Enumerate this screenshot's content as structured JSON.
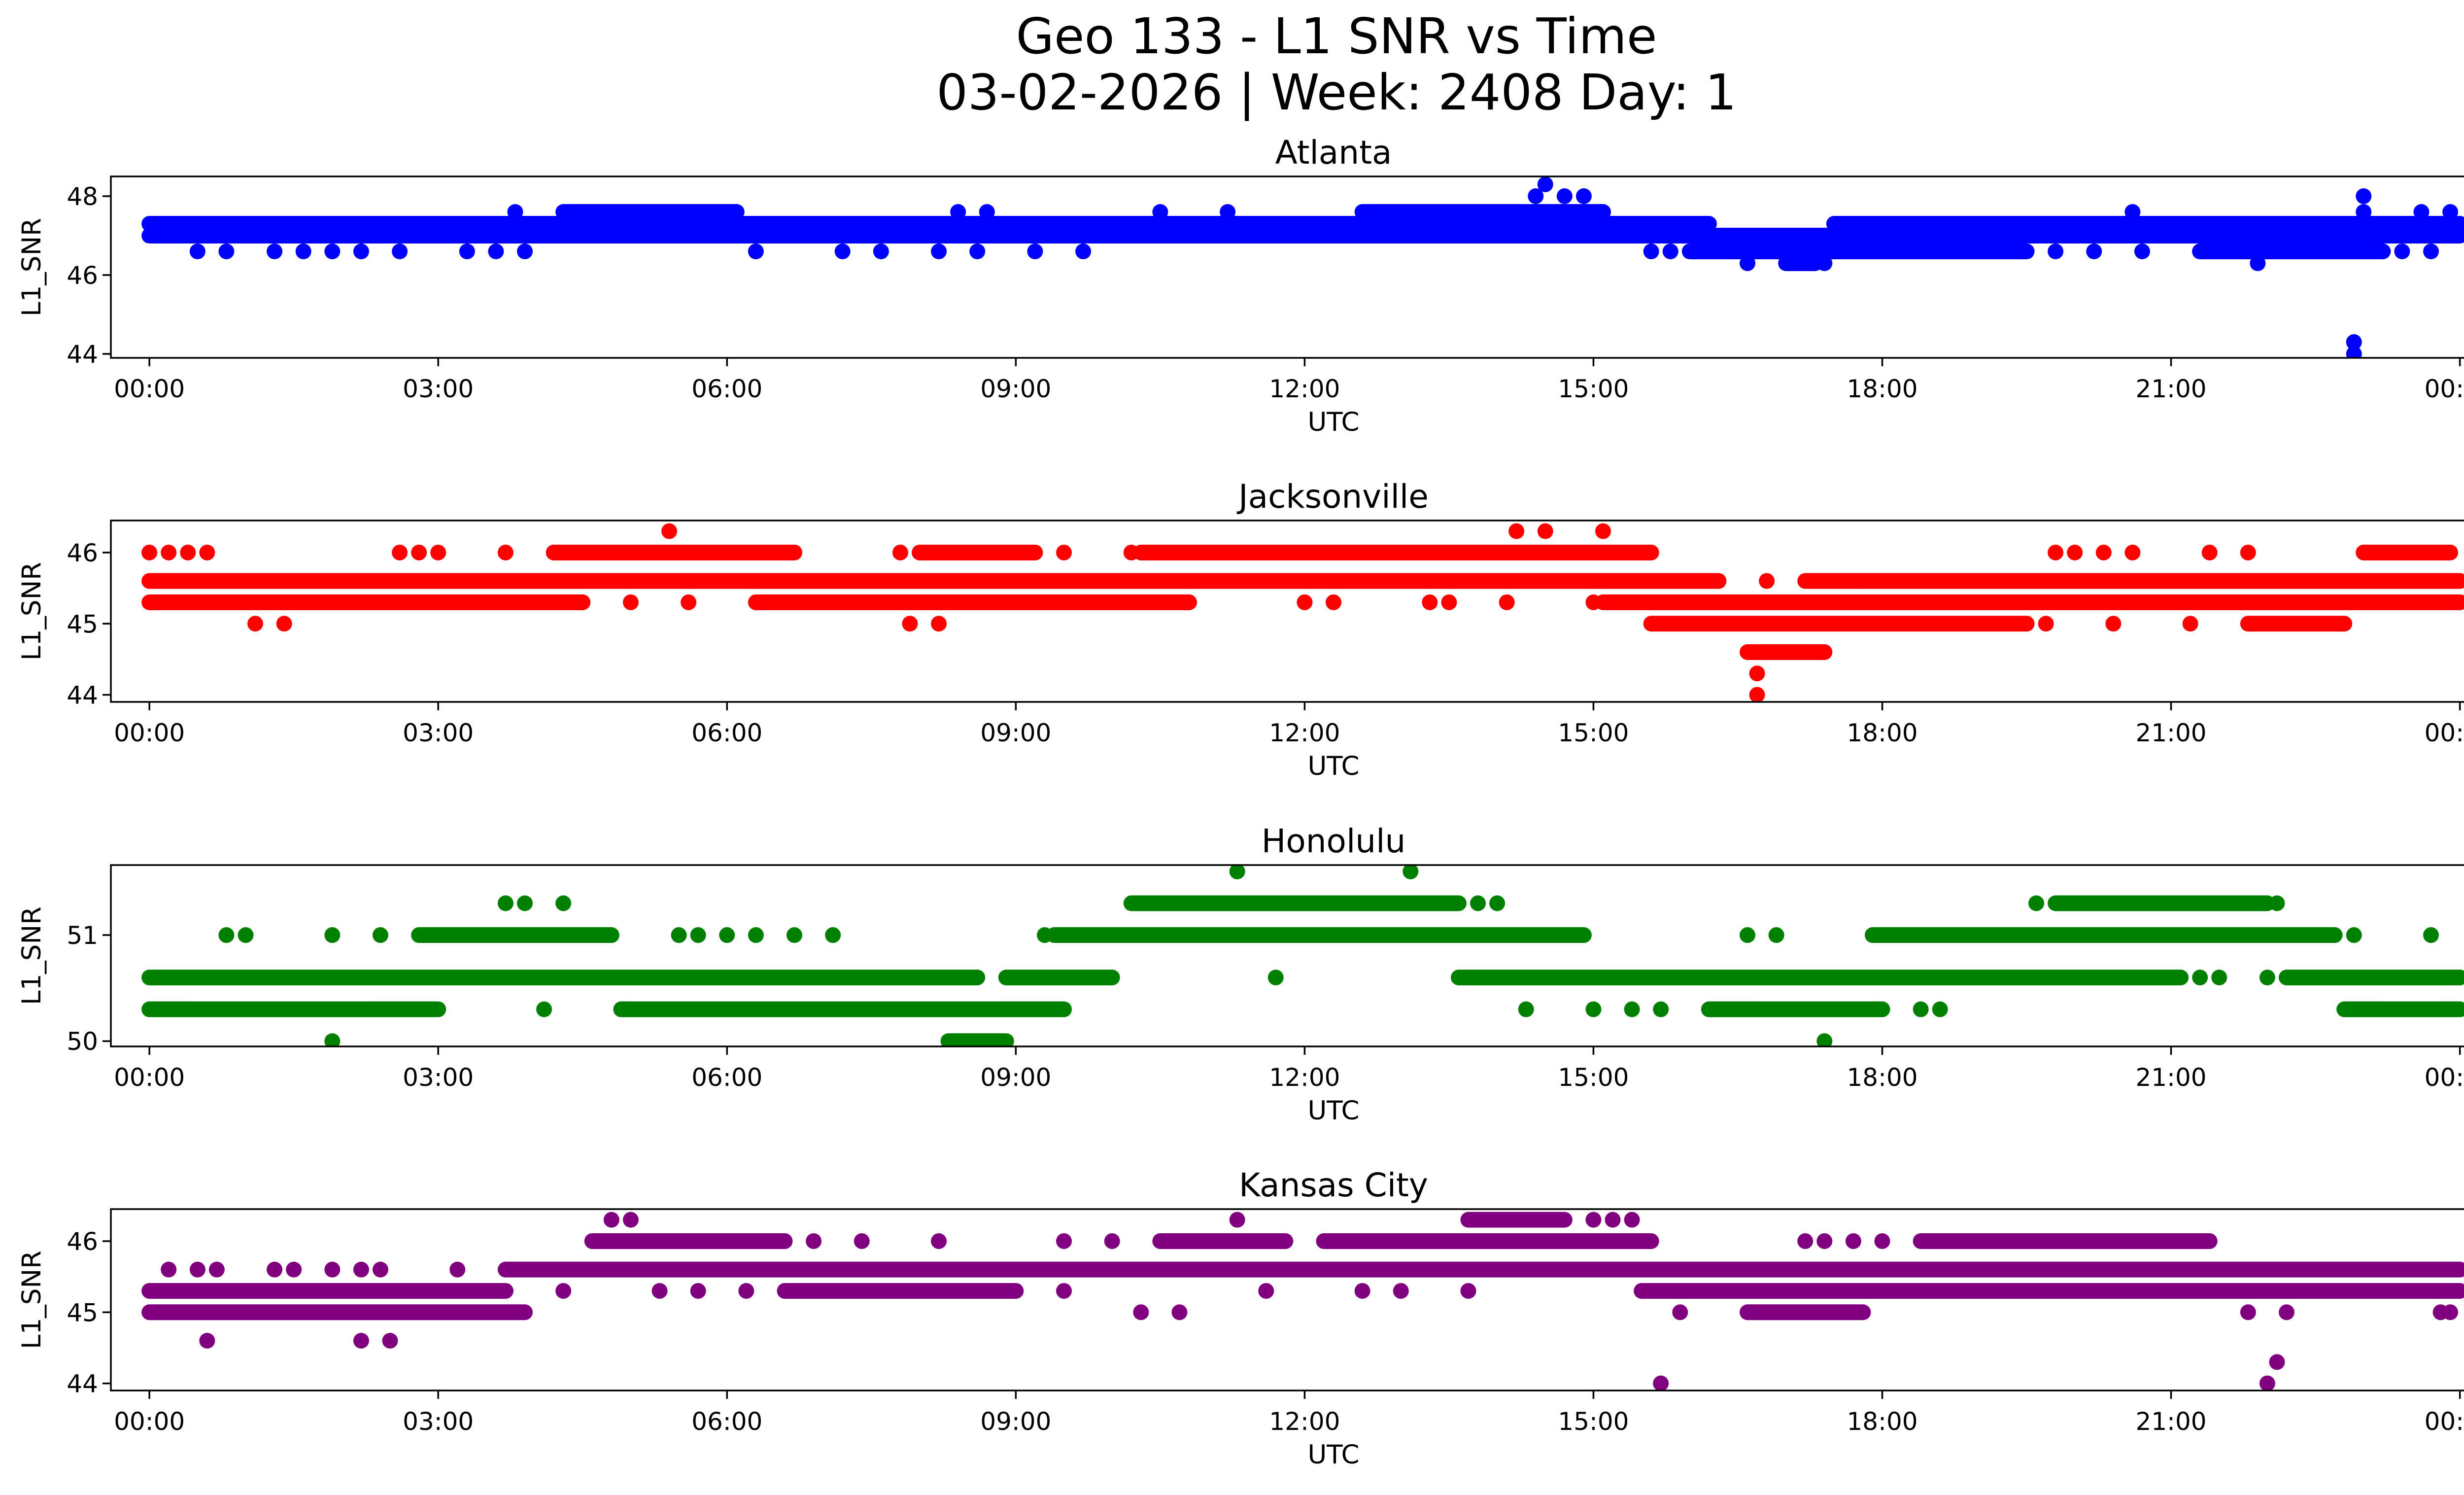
{
  "figure": {
    "title_line1": "Geo 133 - L1 SNR vs Time",
    "title_line2": "03-02-2026 | Week: 2408 Day: 1"
  },
  "chart_data": [
    {
      "type": "scatter",
      "title": "Atlanta",
      "xlabel": "UTC",
      "ylabel": "L1_SNR",
      "color": "#0000ff",
      "xlim": [
        -0.4,
        25.0
      ],
      "ylim": [
        43.9,
        48.5
      ],
      "xticks": [
        0,
        3,
        6,
        9,
        12,
        15,
        18,
        21,
        24
      ],
      "xticklabels": [
        "00:00",
        "03:00",
        "06:00",
        "09:00",
        "12:00",
        "15:00",
        "18:00",
        "21:00",
        "00:00"
      ],
      "yticks": [
        44,
        46,
        48
      ],
      "yticklabels": [
        "44",
        "46",
        "48"
      ],
      "bands": [
        {
          "y": 47.3,
          "x0": 0.0,
          "x1": 4.3
        },
        {
          "y": 47.3,
          "x0": 4.3,
          "x1": 11.8
        },
        {
          "y": 47.3,
          "x0": 11.8,
          "x1": 16.2
        },
        {
          "y": 47.3,
          "x0": 17.5,
          "x1": 24.0
        },
        {
          "y": 47.0,
          "x0": 0.0,
          "x1": 4.3
        },
        {
          "y": 47.0,
          "x0": 4.3,
          "x1": 12.6
        },
        {
          "y": 47.0,
          "x0": 12.6,
          "x1": 18.5
        },
        {
          "y": 47.0,
          "x0": 18.5,
          "x1": 24.0
        },
        {
          "y": 46.6,
          "x0": 16.0,
          "x1": 19.5
        },
        {
          "y": 46.6,
          "x0": 21.3,
          "x1": 23.2
        },
        {
          "y": 47.6,
          "x0": 4.3,
          "x1": 6.1
        },
        {
          "y": 47.6,
          "x0": 12.6,
          "x1": 15.1
        },
        {
          "y": 46.3,
          "x0": 17.0,
          "x1": 17.3
        }
      ],
      "points": [
        [
          0.5,
          46.6
        ],
        [
          0.8,
          46.6
        ],
        [
          1.3,
          46.6
        ],
        [
          1.6,
          46.6
        ],
        [
          1.9,
          46.6
        ],
        [
          2.2,
          46.6
        ],
        [
          2.6,
          46.6
        ],
        [
          3.3,
          46.6
        ],
        [
          3.6,
          46.6
        ],
        [
          3.9,
          46.6
        ],
        [
          4.8,
          47.0
        ],
        [
          5.3,
          47.0
        ],
        [
          5.8,
          47.0
        ],
        [
          6.3,
          46.6
        ],
        [
          7.2,
          46.6
        ],
        [
          7.6,
          46.6
        ],
        [
          8.2,
          46.6
        ],
        [
          8.6,
          46.6
        ],
        [
          9.2,
          46.6
        ],
        [
          9.7,
          46.6
        ],
        [
          3.8,
          47.6
        ],
        [
          8.4,
          47.6
        ],
        [
          8.7,
          47.6
        ],
        [
          10.5,
          47.6
        ],
        [
          11.2,
          47.6
        ],
        [
          14.4,
          48.0
        ],
        [
          14.5,
          48.3
        ],
        [
          14.7,
          48.0
        ],
        [
          14.9,
          48.0
        ],
        [
          15.6,
          46.6
        ],
        [
          15.8,
          46.6
        ],
        [
          16.6,
          46.3
        ],
        [
          17.2,
          46.3
        ],
        [
          17.4,
          46.3
        ],
        [
          17.8,
          47.3
        ],
        [
          18.1,
          46.6
        ],
        [
          18.6,
          46.6
        ],
        [
          19.0,
          46.6
        ],
        [
          19.4,
          46.6
        ],
        [
          19.8,
          46.6
        ],
        [
          20.2,
          46.6
        ],
        [
          20.7,
          46.6
        ],
        [
          21.3,
          46.6
        ],
        [
          21.9,
          46.3
        ],
        [
          20.6,
          47.6
        ],
        [
          23.0,
          48.0
        ],
        [
          23.0,
          47.6
        ],
        [
          23.6,
          47.6
        ],
        [
          23.9,
          47.6
        ],
        [
          22.9,
          44.3
        ],
        [
          22.9,
          44.0
        ],
        [
          23.4,
          46.6
        ],
        [
          23.7,
          46.6
        ]
      ]
    },
    {
      "type": "scatter",
      "title": "Jacksonville",
      "xlabel": "UTC",
      "ylabel": "L1_SNR",
      "color": "#ff0000",
      "xlim": [
        -0.4,
        25.0
      ],
      "ylim": [
        43.9,
        46.45
      ],
      "xticks": [
        0,
        3,
        6,
        9,
        12,
        15,
        18,
        21,
        24
      ],
      "xticklabels": [
        "00:00",
        "03:00",
        "06:00",
        "09:00",
        "12:00",
        "15:00",
        "18:00",
        "21:00",
        "00:00"
      ],
      "yticks": [
        44,
        45,
        46
      ],
      "yticklabels": [
        "44",
        "45",
        "46"
      ],
      "bands": [
        {
          "y": 45.6,
          "x0": 0.0,
          "x1": 16.3
        },
        {
          "y": 45.6,
          "x0": 17.2,
          "x1": 24.0
        },
        {
          "y": 45.3,
          "x0": 0.0,
          "x1": 4.5
        },
        {
          "y": 45.3,
          "x0": 6.3,
          "x1": 10.8
        },
        {
          "y": 45.3,
          "x0": 15.1,
          "x1": 24.0
        },
        {
          "y": 46.0,
          "x0": 4.2,
          "x1": 6.7
        },
        {
          "y": 46.0,
          "x0": 8.0,
          "x1": 9.2
        },
        {
          "y": 46.0,
          "x0": 10.3,
          "x1": 15.6
        },
        {
          "y": 46.0,
          "x0": 23.0,
          "x1": 23.9
        },
        {
          "y": 45.0,
          "x0": 15.6,
          "x1": 19.5
        },
        {
          "y": 45.0,
          "x0": 21.8,
          "x1": 22.8
        },
        {
          "y": 44.6,
          "x0": 16.6,
          "x1": 17.4
        }
      ],
      "points": [
        [
          0.0,
          46.0
        ],
        [
          0.2,
          46.0
        ],
        [
          0.4,
          46.0
        ],
        [
          0.6,
          46.0
        ],
        [
          1.1,
          45.0
        ],
        [
          1.4,
          45.0
        ],
        [
          2.6,
          46.0
        ],
        [
          2.8,
          46.0
        ],
        [
          3.0,
          46.0
        ],
        [
          3.7,
          46.0
        ],
        [
          5.0,
          45.3
        ],
        [
          5.4,
          46.3
        ],
        [
          5.6,
          45.3
        ],
        [
          7.8,
          46.0
        ],
        [
          7.9,
          45.0
        ],
        [
          8.2,
          45.0
        ],
        [
          9.5,
          46.0
        ],
        [
          10.2,
          46.0
        ],
        [
          12.0,
          45.3
        ],
        [
          12.3,
          45.3
        ],
        [
          13.3,
          45.3
        ],
        [
          13.5,
          45.3
        ],
        [
          14.1,
          45.3
        ],
        [
          14.2,
          46.3
        ],
        [
          14.5,
          46.3
        ],
        [
          15.1,
          46.3
        ],
        [
          15.0,
          45.3
        ],
        [
          16.7,
          44.3
        ],
        [
          16.7,
          44.0
        ],
        [
          16.8,
          45.6
        ],
        [
          17.8,
          45.6
        ],
        [
          19.8,
          46.0
        ],
        [
          20.0,
          46.0
        ],
        [
          20.3,
          46.0
        ],
        [
          20.6,
          46.0
        ],
        [
          21.4,
          46.0
        ],
        [
          21.8,
          46.0
        ],
        [
          20.4,
          45.0
        ],
        [
          21.2,
          45.0
        ],
        [
          19.5,
          45.0
        ],
        [
          19.7,
          45.0
        ]
      ]
    },
    {
      "type": "scatter",
      "title": "Honolulu",
      "xlabel": "UTC",
      "ylabel": "L1_SNR",
      "color": "#008000",
      "xlim": [
        -0.4,
        25.0
      ],
      "ylim": [
        49.95,
        51.66
      ],
      "xticks": [
        0,
        3,
        6,
        9,
        12,
        15,
        18,
        21,
        24
      ],
      "xticklabels": [
        "00:00",
        "03:00",
        "06:00",
        "09:00",
        "12:00",
        "15:00",
        "18:00",
        "21:00",
        "00:00"
      ],
      "yticks": [
        50,
        51
      ],
      "yticklabels": [
        "50",
        "51"
      ],
      "bands": [
        {
          "y": 50.6,
          "x0": 0.0,
          "x1": 8.6
        },
        {
          "y": 50.6,
          "x0": 8.9,
          "x1": 10.0
        },
        {
          "y": 50.6,
          "x0": 13.6,
          "x1": 21.1
        },
        {
          "y": 50.6,
          "x0": 22.2,
          "x1": 24.0
        },
        {
          "y": 50.3,
          "x0": 0.0,
          "x1": 3.0
        },
        {
          "y": 50.3,
          "x0": 4.9,
          "x1": 9.5
        },
        {
          "y": 50.3,
          "x0": 16.2,
          "x1": 18.0
        },
        {
          "y": 50.3,
          "x0": 22.8,
          "x1": 24.0
        },
        {
          "y": 51.0,
          "x0": 2.8,
          "x1": 4.8
        },
        {
          "y": 51.0,
          "x0": 9.4,
          "x1": 14.9
        },
        {
          "y": 51.0,
          "x0": 17.9,
          "x1": 22.7
        },
        {
          "y": 51.3,
          "x0": 10.2,
          "x1": 13.6
        },
        {
          "y": 51.3,
          "x0": 19.8,
          "x1": 22.0
        },
        {
          "y": 50.0,
          "x0": 8.3,
          "x1": 8.9
        }
      ],
      "points": [
        [
          0.8,
          51.0
        ],
        [
          1.0,
          51.0
        ],
        [
          1.9,
          51.0
        ],
        [
          2.4,
          51.0
        ],
        [
          1.9,
          50.0
        ],
        [
          3.7,
          51.3
        ],
        [
          3.9,
          51.3
        ],
        [
          4.3,
          51.3
        ],
        [
          4.1,
          50.3
        ],
        [
          5.5,
          51.0
        ],
        [
          5.7,
          51.0
        ],
        [
          6.0,
          51.0
        ],
        [
          6.3,
          51.0
        ],
        [
          6.7,
          51.0
        ],
        [
          7.1,
          51.0
        ],
        [
          9.3,
          51.0
        ],
        [
          11.3,
          51.6
        ],
        [
          11.7,
          50.6
        ],
        [
          13.1,
          51.6
        ],
        [
          13.8,
          51.3
        ],
        [
          14.0,
          51.3
        ],
        [
          14.3,
          50.3
        ],
        [
          15.0,
          50.3
        ],
        [
          15.4,
          50.3
        ],
        [
          15.7,
          50.3
        ],
        [
          16.6,
          51.0
        ],
        [
          16.9,
          51.0
        ],
        [
          17.4,
          50.0
        ],
        [
          18.4,
          50.3
        ],
        [
          18.6,
          50.3
        ],
        [
          19.6,
          51.3
        ],
        [
          21.3,
          50.6
        ],
        [
          21.5,
          50.6
        ],
        [
          22.0,
          50.6
        ],
        [
          22.1,
          51.3
        ],
        [
          22.9,
          51.0
        ],
        [
          23.7,
          51.0
        ]
      ]
    },
    {
      "type": "scatter",
      "title": "Kansas City",
      "xlabel": "UTC",
      "ylabel": "L1_SNR",
      "color": "#800080",
      "xlim": [
        -0.4,
        25.0
      ],
      "ylim": [
        43.9,
        46.45
      ],
      "xticks": [
        0,
        3,
        6,
        9,
        12,
        15,
        18,
        21,
        24
      ],
      "xticklabels": [
        "00:00",
        "03:00",
        "06:00",
        "09:00",
        "12:00",
        "15:00",
        "18:00",
        "21:00",
        "00:00"
      ],
      "yticks": [
        44,
        45,
        46
      ],
      "yticklabels": [
        "44",
        "45",
        "46"
      ],
      "bands": [
        {
          "y": 45.3,
          "x0": 0.0,
          "x1": 3.7
        },
        {
          "y": 45.3,
          "x0": 6.6,
          "x1": 9.0
        },
        {
          "y": 45.3,
          "x0": 15.5,
          "x1": 24.0
        },
        {
          "y": 45.6,
          "x0": 3.7,
          "x1": 15.0
        },
        {
          "y": 45.6,
          "x0": 15.0,
          "x1": 24.0
        },
        {
          "y": 45.0,
          "x0": 0.0,
          "x1": 3.9
        },
        {
          "y": 45.0,
          "x0": 16.6,
          "x1": 17.8
        },
        {
          "y": 46.0,
          "x0": 4.6,
          "x1": 6.6
        },
        {
          "y": 46.0,
          "x0": 10.5,
          "x1": 11.8
        },
        {
          "y": 46.0,
          "x0": 12.2,
          "x1": 15.6
        },
        {
          "y": 46.0,
          "x0": 18.4,
          "x1": 21.4
        },
        {
          "y": 46.3,
          "x0": 13.7,
          "x1": 14.7
        }
      ],
      "points": [
        [
          0.2,
          45.6
        ],
        [
          0.5,
          45.6
        ],
        [
          0.7,
          45.6
        ],
        [
          0.6,
          44.6
        ],
        [
          1.3,
          45.6
        ],
        [
          1.5,
          45.6
        ],
        [
          1.9,
          45.6
        ],
        [
          2.2,
          45.6
        ],
        [
          2.2,
          44.6
        ],
        [
          2.5,
          44.6
        ],
        [
          2.4,
          45.6
        ],
        [
          3.2,
          45.6
        ],
        [
          4.8,
          46.3
        ],
        [
          5.0,
          46.3
        ],
        [
          4.3,
          45.3
        ],
        [
          5.3,
          45.3
        ],
        [
          5.7,
          45.3
        ],
        [
          6.2,
          45.3
        ],
        [
          6.9,
          46.0
        ],
        [
          7.4,
          46.0
        ],
        [
          8.2,
          46.0
        ],
        [
          9.5,
          46.0
        ],
        [
          10.0,
          46.0
        ],
        [
          9.5,
          45.3
        ],
        [
          10.3,
          45.0
        ],
        [
          10.7,
          45.0
        ],
        [
          11.3,
          46.3
        ],
        [
          11.6,
          45.3
        ],
        [
          12.6,
          45.3
        ],
        [
          13.0,
          45.3
        ],
        [
          13.7,
          45.3
        ],
        [
          15.0,
          46.3
        ],
        [
          15.2,
          46.3
        ],
        [
          15.4,
          46.3
        ],
        [
          15.7,
          44.0
        ],
        [
          15.9,
          45.0
        ],
        [
          16.3,
          45.3
        ],
        [
          17.2,
          46.0
        ],
        [
          17.4,
          46.0
        ],
        [
          17.7,
          46.0
        ],
        [
          18.0,
          46.0
        ],
        [
          21.8,
          45.0
        ],
        [
          22.2,
          45.0
        ],
        [
          22.0,
          44.0
        ],
        [
          22.1,
          44.3
        ],
        [
          23.8,
          45.0
        ],
        [
          23.9,
          45.0
        ]
      ]
    }
  ]
}
